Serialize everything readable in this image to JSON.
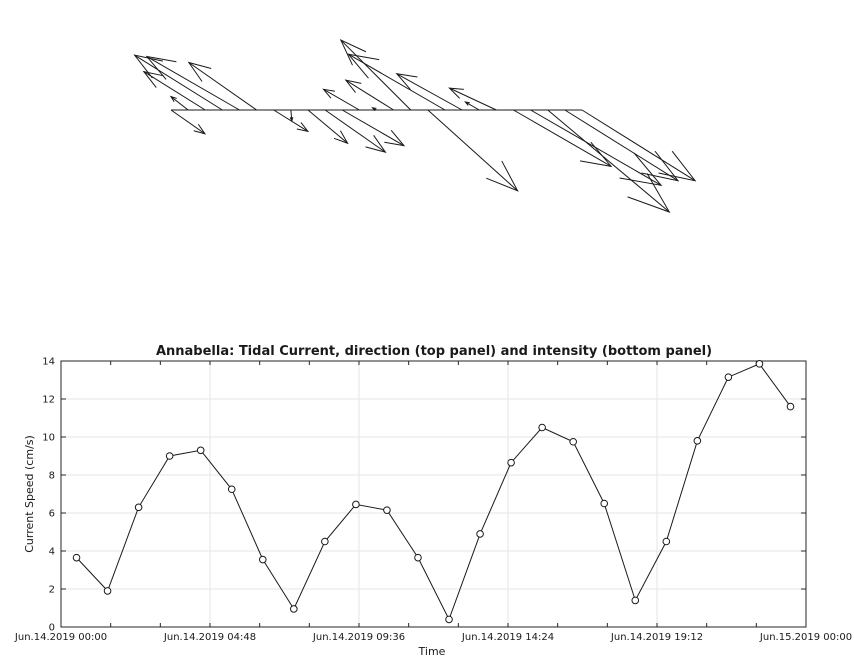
{
  "chart_data": [
    {
      "type": "quiver",
      "description_note": "",
      "x": [
        0,
        1,
        2,
        3,
        4,
        5,
        6,
        7,
        8,
        9,
        10,
        11,
        12,
        13,
        14,
        15,
        16,
        17,
        18,
        19,
        20,
        21,
        22,
        23,
        24
      ],
      "time_labels": [
        "Jun.14.2019 00:00",
        "",
        "",
        "",
        "",
        "",
        "",
        "",
        "",
        "",
        "",
        "",
        "",
        "",
        "",
        "",
        "",
        "",
        "",
        "",
        "",
        "",
        "",
        "",
        "Jun.15.2019 00:00"
      ],
      "directions_deg": [
        -35,
        142,
        148,
        148,
        150,
        145,
        -32,
        -85,
        -40,
        -35,
        -30,
        150,
        151,
        148,
        135,
        -42,
        150,
        151,
        150,
        155,
        -30,
        -30,
        -40,
        -32,
        -32
      ],
      "speeds": [
        3.6,
        1.9,
        6.3,
        9.0,
        9.3,
        7.2,
        3.5,
        0.95,
        4.5,
        6.4,
        6.2,
        3.6,
        0.4,
        4.9,
        8.6,
        10.5,
        9.7,
        6.5,
        1.4,
        4.5,
        9.8,
        13.1,
        13.8,
        11.6,
        11.6
      ]
    },
    {
      "type": "line",
      "title": "Annabella: Tidal Current, direction (top panel) and intensity (bottom panel)",
      "xlabel": "Time",
      "ylabel": "Current Speed (cm/s)",
      "ylim": [
        0,
        14
      ],
      "yticks": [
        0,
        2,
        4,
        6,
        8,
        10,
        12,
        14
      ],
      "xlim": [
        0,
        24
      ],
      "xticks": [
        0,
        4.8,
        9.6,
        14.4,
        19.2,
        24
      ],
      "xtick_labels": [
        "Jun.14.2019 00:00",
        "Jun.14.2019 04:48",
        "Jun.14.2019 09:36",
        "Jun.14.2019 14:24",
        "Jun.14.2019 19:12",
        "Jun.15.2019 00:00"
      ],
      "grid": true,
      "marker": "circle",
      "x": [
        0.5,
        1.5,
        2.5,
        3.5,
        4.5,
        5.5,
        6.5,
        7.5,
        8.5,
        9.5,
        10.5,
        11.5,
        12.5,
        13.5,
        14.5,
        15.5,
        16.5,
        17.5,
        18.5,
        19.5,
        20.5,
        21.5,
        22.5,
        23.5
      ],
      "values": [
        3.65,
        1.9,
        6.3,
        9.0,
        9.3,
        7.25,
        3.55,
        0.95,
        4.5,
        6.45,
        6.15,
        3.65,
        0.4,
        4.9,
        8.65,
        10.5,
        9.75,
        6.5,
        1.4,
        4.5,
        9.8,
        13.15,
        13.85,
        11.6
      ]
    }
  ],
  "colors": {
    "line": "#1a1a1a",
    "grid": "#e6e6e6",
    "axis": "#262626"
  }
}
